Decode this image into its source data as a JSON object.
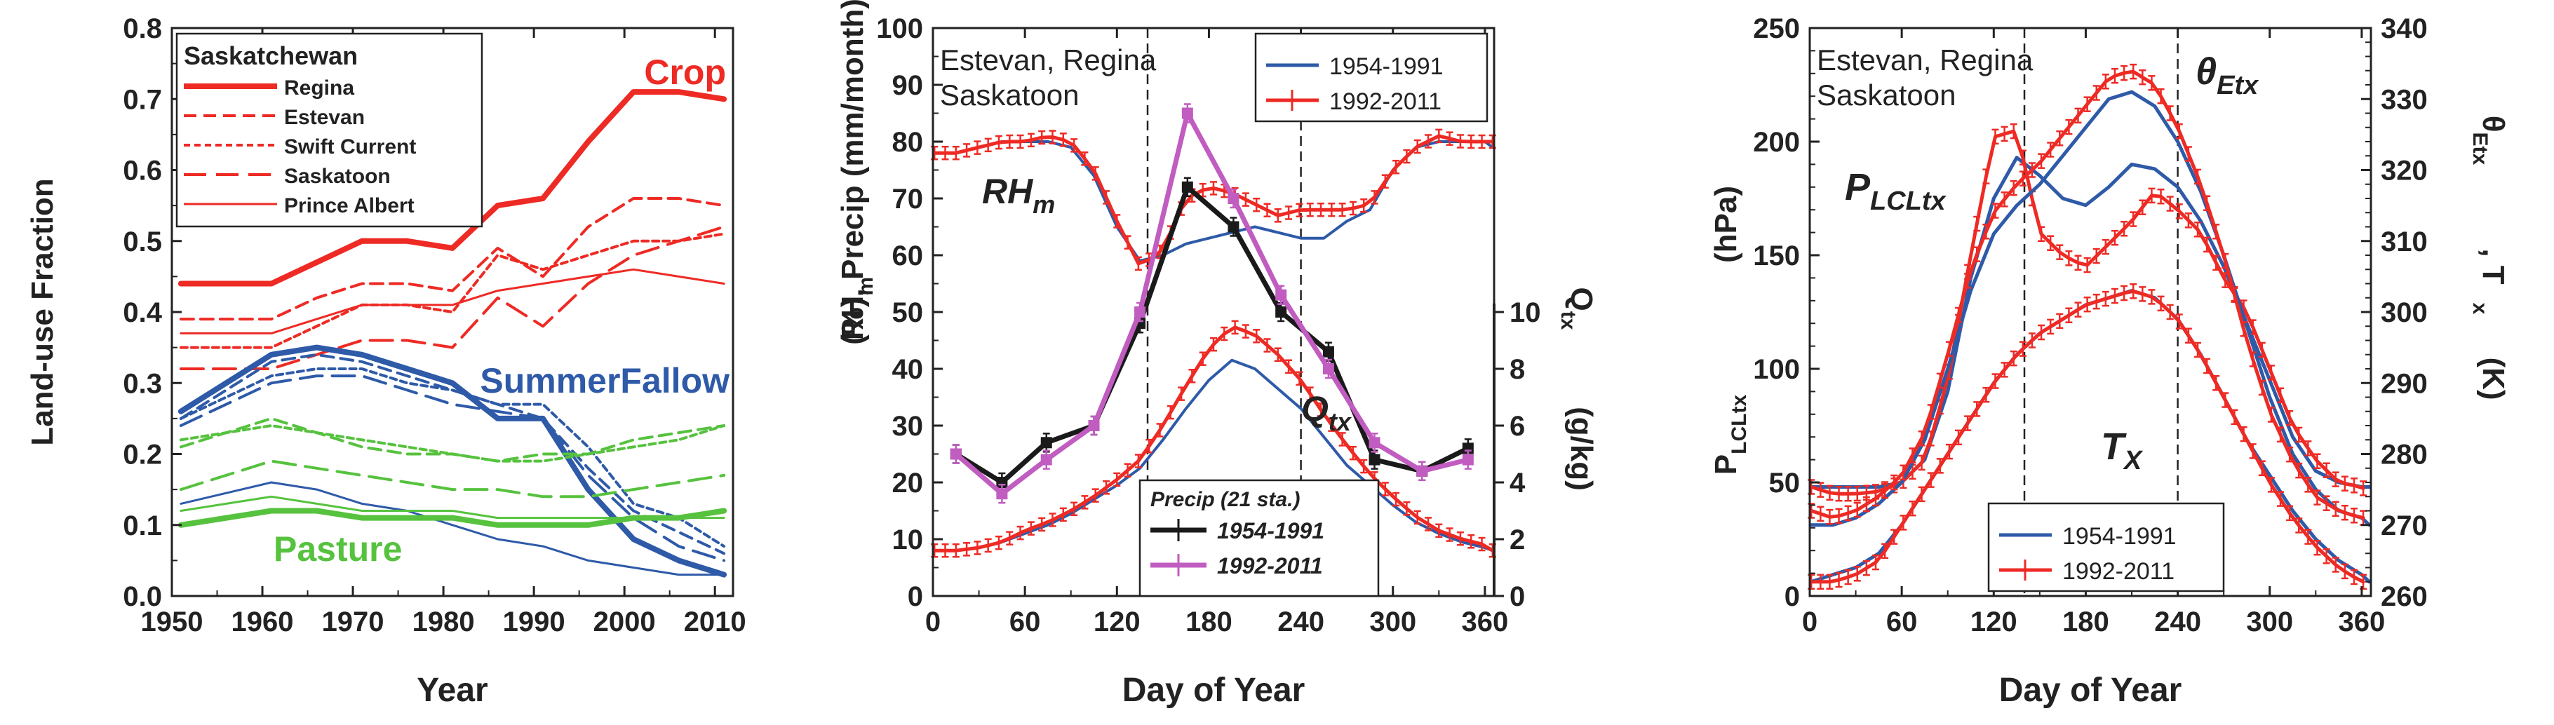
{
  "colors": {
    "red": "#ee2a24",
    "blue": "#2e5aa8",
    "green": "#56c23e",
    "black": "#1a1a1a",
    "magenta": "#c15cc0",
    "axis": "#222222"
  },
  "chart_data": [
    {
      "type": "line",
      "panel": "left",
      "ylabel": "Land-use Fraction",
      "xlabel": "Year",
      "xlim": [
        1950,
        2012
      ],
      "ylim": [
        0.0,
        0.8
      ],
      "xticks": [
        1950,
        1960,
        1970,
        1980,
        1990,
        2000,
        2010
      ],
      "yticks": [
        "0.0",
        "0.1",
        "0.2",
        "0.3",
        "0.4",
        "0.5",
        "0.6",
        "0.7",
        "0.8"
      ],
      "legend_title": "Saskatchewan",
      "legend": [
        {
          "label": "Regina",
          "style": "solid-thick"
        },
        {
          "label": "Estevan",
          "style": "dash"
        },
        {
          "label": "Swift Current",
          "style": "shortdash"
        },
        {
          "label": "Saskatoon",
          "style": "longdash"
        },
        {
          "label": "Prince Albert",
          "style": "solid-thin"
        }
      ],
      "group_labels": {
        "crop": "Crop",
        "fallow": "SummerFallow",
        "pasture": "Pasture"
      },
      "x": [
        1951,
        1961,
        1966,
        1971,
        1976,
        1981,
        1986,
        1991,
        1996,
        2001,
        2006,
        2011
      ],
      "series": [
        {
          "name": "Crop Regina",
          "group": "crop",
          "style": "solid-thick",
          "values": [
            0.44,
            0.44,
            0.47,
            0.5,
            0.5,
            0.49,
            0.55,
            0.56,
            0.64,
            0.71,
            0.71,
            0.7
          ]
        },
        {
          "name": "Crop Estevan",
          "group": "crop",
          "style": "dash",
          "values": [
            0.39,
            0.39,
            0.42,
            0.44,
            0.44,
            0.43,
            0.49,
            0.45,
            0.52,
            0.56,
            0.56,
            0.55
          ]
        },
        {
          "name": "Crop Swift Current",
          "group": "crop",
          "style": "shortdash",
          "values": [
            0.35,
            0.35,
            0.38,
            0.41,
            0.41,
            0.4,
            0.48,
            0.46,
            0.48,
            0.5,
            0.5,
            0.51
          ]
        },
        {
          "name": "Crop Saskatoon",
          "group": "crop",
          "style": "longdash",
          "values": [
            0.32,
            0.32,
            0.34,
            0.36,
            0.36,
            0.35,
            0.42,
            0.38,
            0.44,
            0.48,
            0.5,
            0.52
          ]
        },
        {
          "name": "Crop Prince Albert",
          "group": "crop",
          "style": "solid-thin",
          "values": [
            0.37,
            0.37,
            0.39,
            0.41,
            0.41,
            0.41,
            0.43,
            0.44,
            0.45,
            0.46,
            0.45,
            0.44
          ]
        },
        {
          "name": "SummerFallow Regina",
          "group": "fallow",
          "style": "solid-thick",
          "values": [
            0.26,
            0.34,
            0.35,
            0.34,
            0.32,
            0.3,
            0.25,
            0.25,
            0.15,
            0.08,
            0.05,
            0.03
          ]
        },
        {
          "name": "SummerFallow Estevan",
          "group": "fallow",
          "style": "dash",
          "values": [
            0.25,
            0.33,
            0.34,
            0.33,
            0.31,
            0.29,
            0.27,
            0.25,
            0.18,
            0.12,
            0.09,
            0.06
          ]
        },
        {
          "name": "SummerFallow Swift Current",
          "group": "fallow",
          "style": "shortdash",
          "values": [
            0.25,
            0.31,
            0.32,
            0.32,
            0.3,
            0.29,
            0.27,
            0.27,
            0.21,
            0.13,
            0.11,
            0.07
          ]
        },
        {
          "name": "SummerFallow Saskatoon",
          "group": "fallow",
          "style": "longdash",
          "values": [
            0.24,
            0.3,
            0.31,
            0.31,
            0.29,
            0.27,
            0.26,
            0.25,
            0.17,
            0.11,
            0.07,
            0.05
          ]
        },
        {
          "name": "SummerFallow Prince Albert",
          "group": "fallow",
          "style": "solid-thin",
          "values": [
            0.13,
            0.16,
            0.15,
            0.13,
            0.12,
            0.1,
            0.08,
            0.07,
            0.05,
            0.04,
            0.03,
            0.03
          ]
        },
        {
          "name": "Pasture Regina",
          "group": "pasture",
          "style": "solid-thick",
          "values": [
            0.1,
            0.12,
            0.12,
            0.11,
            0.11,
            0.11,
            0.1,
            0.1,
            0.1,
            0.11,
            0.11,
            0.12
          ]
        },
        {
          "name": "Pasture Estevan",
          "group": "pasture",
          "style": "dash",
          "values": [
            0.21,
            0.25,
            0.23,
            0.21,
            0.2,
            0.2,
            0.19,
            0.2,
            0.2,
            0.22,
            0.23,
            0.24
          ]
        },
        {
          "name": "Pasture Swift Current",
          "group": "pasture",
          "style": "shortdash",
          "values": [
            0.22,
            0.24,
            0.23,
            0.22,
            0.21,
            0.2,
            0.19,
            0.19,
            0.2,
            0.21,
            0.22,
            0.24
          ]
        },
        {
          "name": "Pasture Saskatoon",
          "group": "pasture",
          "style": "longdash",
          "values": [
            0.15,
            0.19,
            0.18,
            0.17,
            0.16,
            0.15,
            0.15,
            0.14,
            0.14,
            0.15,
            0.16,
            0.17
          ]
        },
        {
          "name": "Pasture Prince Albert",
          "group": "pasture",
          "style": "solid-thin",
          "values": [
            0.12,
            0.14,
            0.13,
            0.12,
            0.12,
            0.12,
            0.11,
            0.11,
            0.11,
            0.11,
            0.11,
            0.11
          ]
        }
      ]
    },
    {
      "type": "line",
      "panel": "middle",
      "ylabel": "RHm (%), Precip (mm/month)",
      "y2label": "Qtx (g/kg)",
      "xlabel": "Day of Year",
      "xlim": [
        0,
        366
      ],
      "ylim": [
        0,
        100
      ],
      "y2lim": [
        0,
        20
      ],
      "xticks": [
        "0",
        "60",
        "120",
        "180",
        "240",
        "300",
        "360"
      ],
      "yticks": [
        "0",
        "10",
        "20",
        "30",
        "40",
        "50",
        "60",
        "70",
        "80",
        "90",
        "100"
      ],
      "y2ticks": [
        "0",
        "2",
        "4",
        "6",
        "8",
        "10"
      ],
      "vlines": [
        140,
        240
      ],
      "station_label_1": "Estevan, Regina",
      "station_label_2": "Saskatoon",
      "legend": [
        {
          "label": "1954-1991",
          "color": "blue",
          "errorbars": false
        },
        {
          "label": "1992-2011",
          "color": "red",
          "errorbars": true
        }
      ],
      "precip_legend_title": "Precip (21 sta.)",
      "precip_legend": [
        {
          "label": "1954-1991",
          "color": "black"
        },
        {
          "label": "1992-2011",
          "color": "magenta"
        }
      ],
      "annotations": {
        "rh": "RH",
        "rh_sub": "m",
        "q": "Q",
        "q_sub": "tx"
      },
      "rh_x": [
        1,
        15,
        30,
        45,
        60,
        75,
        90,
        105,
        120,
        135,
        150,
        165,
        180,
        195,
        210,
        225,
        240,
        255,
        270,
        285,
        300,
        315,
        330,
        345,
        360,
        365
      ],
      "series": [
        {
          "name": "RHm 1954-1991",
          "color": "blue",
          "x": "rh_x",
          "values": [
            78,
            78,
            79,
            80,
            80,
            80,
            79,
            74,
            65,
            59,
            60,
            62,
            63,
            64,
            65,
            64,
            63,
            63,
            66,
            68,
            75,
            79,
            80,
            80,
            80,
            79
          ]
        },
        {
          "name": "RHm 1992-2011",
          "color": "red",
          "errorbars": true,
          "x": "rh_x",
          "values": [
            78,
            78,
            79,
            80,
            80,
            81,
            80,
            75,
            66,
            58,
            61,
            70,
            72,
            71,
            69,
            67,
            68,
            68,
            68,
            69,
            75,
            79,
            81,
            80,
            80,
            80
          ]
        },
        {
          "name": "Qtx 1954-1991",
          "color": "blue",
          "axis": "right",
          "x": "rh_x",
          "values": [
            1.6,
            1.6,
            1.7,
            1.9,
            2.2,
            2.5,
            2.9,
            3.4,
            3.9,
            4.5,
            5.5,
            6.6,
            7.6,
            8.3,
            8.0,
            7.3,
            6.6,
            5.6,
            4.6,
            3.9,
            3.2,
            2.6,
            2.2,
            1.9,
            1.7,
            1.6
          ]
        },
        {
          "name": "Qtx 1992-2011",
          "color": "red",
          "errorbars": true,
          "axis": "right",
          "x": "rh_x",
          "values": [
            1.6,
            1.6,
            1.7,
            1.9,
            2.3,
            2.6,
            3.0,
            3.5,
            4.1,
            4.8,
            6.0,
            7.4,
            8.7,
            9.5,
            9.2,
            8.5,
            7.6,
            6.4,
            5.3,
            4.3,
            3.5,
            2.8,
            2.3,
            2.0,
            1.8,
            1.6
          ]
        },
        {
          "name": "Precip 1954-1991",
          "color": "black",
          "errorbars": true,
          "x": [
            15,
            45,
            74,
            105,
            135,
            166,
            196,
            227,
            258,
            288,
            319,
            349
          ],
          "values": [
            25,
            20,
            27,
            30,
            48,
            72,
            65,
            50,
            43,
            24,
            22,
            26
          ]
        },
        {
          "name": "Precip 1992-2011",
          "color": "magenta",
          "errorbars": true,
          "x": [
            15,
            45,
            74,
            105,
            135,
            166,
            196,
            227,
            258,
            288,
            319,
            349
          ],
          "values": [
            25,
            18,
            24,
            30,
            50,
            85,
            70,
            53,
            40,
            27,
            22,
            24
          ]
        }
      ]
    },
    {
      "type": "line",
      "panel": "right",
      "ylabel": "PLCLtx(hPa)",
      "y2label": "θEtx, Tx (K)",
      "xlabel": "Day of Year",
      "xlim": [
        0,
        366
      ],
      "ylim": [
        0,
        250
      ],
      "y2lim": [
        260,
        340
      ],
      "xticks": [
        "0",
        "60",
        "120",
        "180",
        "240",
        "300",
        "360"
      ],
      "yticks": [
        "0",
        "50",
        "100",
        "150",
        "200",
        "250"
      ],
      "y2ticks": [
        "260",
        "270",
        "280",
        "290",
        "300",
        "310",
        "320",
        "330",
        "340"
      ],
      "vlines": [
        140,
        240
      ],
      "station_label_1": "Estevan, Regina",
      "station_label_2": "Saskatoon",
      "legend": [
        {
          "label": "1954-1991",
          "color": "blue",
          "errorbars": false
        },
        {
          "label": "1992-2011",
          "color": "red",
          "errorbars": true
        }
      ],
      "annotations": {
        "plcl": "P",
        "plcl_sub": "LCLtx",
        "theta": "θ",
        "theta_sub": "Etx",
        "tx": "T",
        "tx_sub": "X"
      },
      "x": [
        1,
        15,
        30,
        45,
        60,
        75,
        90,
        105,
        120,
        135,
        150,
        165,
        180,
        195,
        210,
        225,
        240,
        255,
        270,
        285,
        300,
        315,
        330,
        345,
        360,
        365
      ],
      "series": [
        {
          "name": "PLCLtx 1954-1991",
          "color": "blue",
          "axis": "left",
          "values": [
            48,
            48,
            48,
            48,
            50,
            60,
            90,
            140,
            175,
            193,
            185,
            175,
            172,
            180,
            190,
            188,
            180,
            165,
            145,
            120,
            95,
            70,
            55,
            50,
            48,
            48
          ]
        },
        {
          "name": "PLCLtx 1992-2011",
          "color": "red",
          "errorbars": true,
          "axis": "left",
          "values": [
            48,
            45,
            45,
            46,
            50,
            60,
            95,
            150,
            202,
            205,
            160,
            150,
            145,
            155,
            165,
            178,
            170,
            160,
            140,
            125,
            100,
            75,
            60,
            50,
            48,
            45
          ]
        },
        {
          "name": "θEtx 1954-1991",
          "color": "blue",
          "axis": "right",
          "values": [
            270,
            270,
            271,
            273,
            276,
            282,
            292,
            303,
            311,
            315,
            318,
            322,
            326,
            330,
            331,
            329,
            324,
            317,
            308,
            298,
            288,
            280,
            275,
            272,
            271,
            270
          ]
        },
        {
          "name": "θEtx 1992-2011",
          "color": "red",
          "errorbars": true,
          "axis": "right",
          "values": [
            272,
            271,
            272,
            274,
            277,
            283,
            294,
            306,
            314,
            318,
            321,
            325,
            329,
            333,
            334,
            332,
            326,
            318,
            308,
            296,
            286,
            279,
            274,
            272,
            271,
            271
          ]
        },
        {
          "name": "Tx 1954-1991",
          "color": "blue",
          "axis": "right",
          "values": [
            262,
            263,
            264,
            266,
            270,
            275,
            280,
            285,
            290,
            294,
            297,
            299,
            301,
            302,
            303,
            302,
            299,
            294,
            288,
            282,
            277,
            272,
            268,
            265,
            263,
            262
          ]
        },
        {
          "name": "Tx 1992-2011",
          "color": "red",
          "errorbars": true,
          "axis": "right",
          "values": [
            262,
            262,
            263,
            265,
            270,
            275,
            280,
            285,
            290,
            294,
            297,
            299,
            301,
            302,
            303,
            302,
            299,
            294,
            288,
            282,
            276,
            271,
            267,
            264,
            262,
            262
          ]
        }
      ]
    }
  ]
}
